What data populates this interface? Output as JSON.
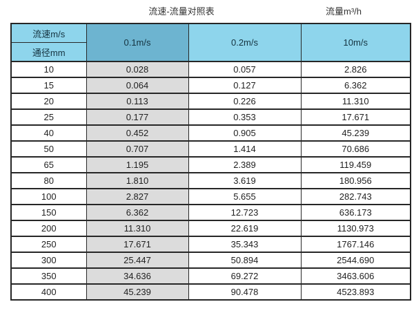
{
  "header": {
    "left_title": "流速-流量对照表",
    "right_title": "流量m³/h"
  },
  "chart_data": {
    "type": "table",
    "title": "流速-流量对照表",
    "unit_label": "流量m³/h",
    "corner_top": "流速m/s",
    "corner_bottom": "通径mm",
    "columns": [
      "0.1m/s",
      "0.2m/s",
      "10m/s"
    ],
    "highlighted_column": "0.1m/s",
    "rows": [
      [
        "10",
        "0.028",
        "0.057",
        "2.826"
      ],
      [
        "15",
        "0.064",
        "0.127",
        "6.362"
      ],
      [
        "20",
        "0.113",
        "0.226",
        "11.310"
      ],
      [
        "25",
        "0.177",
        "0.353",
        "17.671"
      ],
      [
        "40",
        "0.452",
        "0.905",
        "45.239"
      ],
      [
        "50",
        "0.707",
        "1.414",
        "70.686"
      ],
      [
        "65",
        "1.195",
        "2.389",
        "119.459"
      ],
      [
        "80",
        "1.810",
        "3.619",
        "180.956"
      ],
      [
        "100",
        "2.827",
        "5.655",
        "282.743"
      ],
      [
        "150",
        "6.362",
        "12.723",
        "636.173"
      ],
      [
        "200",
        "11.310",
        "22.619",
        "1130.973"
      ],
      [
        "250",
        "17.671",
        "35.343",
        "1767.146"
      ],
      [
        "300",
        "25.447",
        "50.894",
        "2544.690"
      ],
      [
        "350",
        "34.636",
        "69.272",
        "3463.606"
      ],
      [
        "400",
        "45.239",
        "90.478",
        "4523.893"
      ]
    ]
  },
  "colors": {
    "header_blue": "#8ed5ec",
    "selected_column_blue": "#6db4d0",
    "highlight_gray": "#dcdcdc",
    "border": "#262626",
    "text": "#1f1f1f"
  }
}
